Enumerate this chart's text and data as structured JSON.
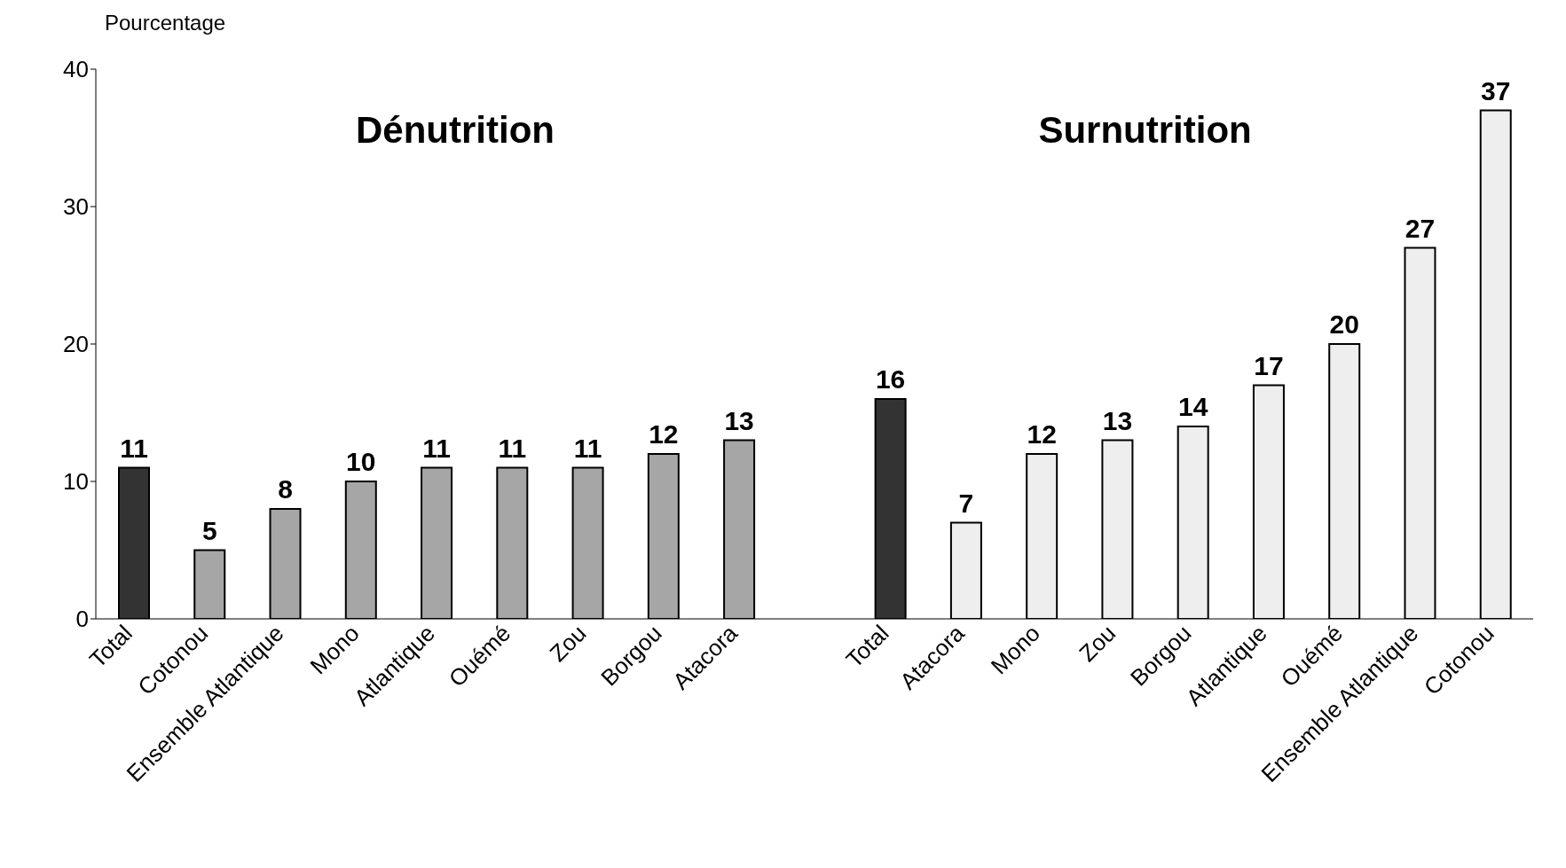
{
  "chart_data": {
    "type": "bar",
    "ylabel": "Pourcentage",
    "annotations": [
      "Dénutrition",
      "Surnutrition"
    ],
    "categories": [
      "Total",
      "Cotonou",
      "Ensemble Atlantique",
      "Mono",
      "Atlantique",
      "Ouémé",
      "Zou",
      "Borgou",
      "Atacora",
      null,
      "Total",
      "Atacora",
      "Mono",
      "Zou",
      "Borgou",
      "Atlantique",
      "Ouémé",
      "Ensemble Atlantique",
      "Cotonou"
    ],
    "values": [
      11,
      5,
      8,
      10,
      11,
      11,
      11,
      12,
      13,
      null,
      16,
      7,
      12,
      13,
      14,
      17,
      20,
      27,
      37
    ],
    "colors": [
      "#333333",
      "#a6a6a6",
      "#a6a6a6",
      "#a6a6a6",
      "#a6a6a6",
      "#a6a6a6",
      "#a6a6a6",
      "#a6a6a6",
      "#a6a6a6",
      "#ffffff",
      "#333333",
      "#eeeeee",
      "#eeeeee",
      "#eeeeee",
      "#eeeeee",
      "#eeeeee",
      "#eeeeee",
      "#eeeeee",
      "#eeeeee"
    ],
    "ylim": [
      0,
      40
    ],
    "yticks": [
      0,
      10,
      20,
      30,
      40
    ],
    "grid": false,
    "data_labels": true
  }
}
